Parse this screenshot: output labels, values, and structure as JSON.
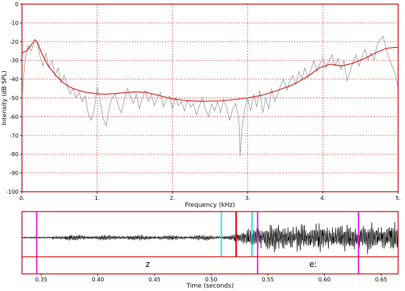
{
  "chart_data": [
    {
      "type": "line",
      "xlabel": "Frequency (kHz)",
      "ylabel": "Intensity (dB SPL)",
      "xlim": [
        0,
        5
      ],
      "ylim": [
        -100,
        0
      ],
      "x_ticks": [
        0,
        1,
        2,
        3,
        4,
        5
      ],
      "x_tick_labels": [
        "0.",
        "1.",
        "2.",
        "3.",
        "4.",
        "5."
      ],
      "y_ticks": [
        0,
        -10,
        -20,
        -30,
        -40,
        -50,
        -60,
        -70,
        -80,
        -90,
        -100
      ],
      "y_tick_labels": [
        "0",
        "-10",
        "-20",
        "-30",
        "-40",
        "-50",
        "-60",
        "-70",
        "-80",
        "-90",
        "-100"
      ],
      "grid": true,
      "grid_color": "#e05050",
      "frame_color": "#cc0000",
      "series": [
        {
          "color": "#999999",
          "points": [
            [
              0,
              -49
            ],
            [
              0.04,
              -30
            ],
            [
              0.08,
              -22
            ],
            [
              0.12,
              -25
            ],
            [
              0.16,
              -21
            ],
            [
              0.2,
              -20
            ],
            [
              0.24,
              -28
            ],
            [
              0.28,
              -33
            ],
            [
              0.32,
              -26
            ],
            [
              0.36,
              -34
            ],
            [
              0.4,
              -30
            ],
            [
              0.44,
              -38
            ],
            [
              0.48,
              -34
            ],
            [
              0.52,
              -42
            ],
            [
              0.56,
              -38
            ],
            [
              0.6,
              -43
            ],
            [
              0.64,
              -48
            ],
            [
              0.68,
              -45
            ],
            [
              0.72,
              -50
            ],
            [
              0.76,
              -47
            ],
            [
              0.8,
              -52
            ],
            [
              0.84,
              -49
            ],
            [
              0.88,
              -58
            ],
            [
              0.92,
              -62
            ],
            [
              0.96,
              -56
            ],
            [
              1.0,
              -44
            ],
            [
              1.04,
              -52
            ],
            [
              1.08,
              -61
            ],
            [
              1.12,
              -65
            ],
            [
              1.16,
              -55
            ],
            [
              1.2,
              -50
            ],
            [
              1.24,
              -48
            ],
            [
              1.28,
              -54
            ],
            [
              1.32,
              -58
            ],
            [
              1.36,
              -51
            ],
            [
              1.4,
              -45
            ],
            [
              1.44,
              -49
            ],
            [
              1.48,
              -53
            ],
            [
              1.52,
              -48
            ],
            [
              1.56,
              -56
            ],
            [
              1.6,
              -50
            ],
            [
              1.64,
              -46
            ],
            [
              1.68,
              -52
            ],
            [
              1.72,
              -48
            ],
            [
              1.76,
              -54
            ],
            [
              1.8,
              -50
            ],
            [
              1.84,
              -47
            ],
            [
              1.88,
              -55
            ],
            [
              1.92,
              -51
            ],
            [
              1.96,
              -49
            ],
            [
              2.0,
              -56
            ],
            [
              2.04,
              -50
            ],
            [
              2.08,
              -54
            ],
            [
              2.12,
              -52
            ],
            [
              2.16,
              -57
            ],
            [
              2.2,
              -51
            ],
            [
              2.24,
              -55
            ],
            [
              2.28,
              -53
            ],
            [
              2.32,
              -59
            ],
            [
              2.36,
              -54
            ],
            [
              2.4,
              -50
            ],
            [
              2.44,
              -56
            ],
            [
              2.48,
              -60
            ],
            [
              2.52,
              -53
            ],
            [
              2.56,
              -57
            ],
            [
              2.6,
              -52
            ],
            [
              2.64,
              -58
            ],
            [
              2.68,
              -51
            ],
            [
              2.72,
              -55
            ],
            [
              2.76,
              -62
            ],
            [
              2.8,
              -56
            ],
            [
              2.84,
              -53
            ],
            [
              2.88,
              -60
            ],
            [
              2.9,
              -81
            ],
            [
              2.92,
              -68
            ],
            [
              2.96,
              -56
            ],
            [
              3.0,
              -50
            ],
            [
              3.04,
              -57
            ],
            [
              3.08,
              -48
            ],
            [
              3.12,
              -55
            ],
            [
              3.16,
              -46
            ],
            [
              3.2,
              -58
            ],
            [
              3.24,
              -50
            ],
            [
              3.28,
              -56
            ],
            [
              3.32,
              -45
            ],
            [
              3.36,
              -52
            ],
            [
              3.4,
              -48
            ],
            [
              3.44,
              -43
            ],
            [
              3.48,
              -40
            ],
            [
              3.52,
              -46
            ],
            [
              3.56,
              -41
            ],
            [
              3.6,
              -38
            ],
            [
              3.64,
              -43
            ],
            [
              3.68,
              -36
            ],
            [
              3.72,
              -40
            ],
            [
              3.76,
              -34
            ],
            [
              3.8,
              -39
            ],
            [
              3.84,
              -35
            ],
            [
              3.88,
              -30
            ],
            [
              3.92,
              -36
            ],
            [
              3.96,
              -32
            ],
            [
              4.0,
              -29
            ],
            [
              4.04,
              -34
            ],
            [
              4.08,
              -30
            ],
            [
              4.12,
              -27
            ],
            [
              4.16,
              -33
            ],
            [
              4.2,
              -29
            ],
            [
              4.24,
              -35
            ],
            [
              4.28,
              -30
            ],
            [
              4.32,
              -41
            ],
            [
              4.36,
              -36
            ],
            [
              4.4,
              -31
            ],
            [
              4.44,
              -27
            ],
            [
              4.48,
              -33
            ],
            [
              4.52,
              -28
            ],
            [
              4.56,
              -24
            ],
            [
              4.6,
              -30
            ],
            [
              4.64,
              -26
            ],
            [
              4.68,
              -30
            ],
            [
              4.72,
              -22
            ],
            [
              4.76,
              -19
            ],
            [
              4.8,
              -17
            ],
            [
              4.84,
              -24
            ],
            [
              4.88,
              -29
            ],
            [
              4.92,
              -33
            ],
            [
              4.96,
              -37
            ],
            [
              5.0,
              -45
            ]
          ]
        },
        {
          "color": "#cc0000",
          "points": [
            [
              0,
              -26
            ],
            [
              0.06,
              -25
            ],
            [
              0.12,
              -22
            ],
            [
              0.17,
              -19
            ],
            [
              0.2,
              -20
            ],
            [
              0.26,
              -26
            ],
            [
              0.35,
              -33
            ],
            [
              0.45,
              -38
            ],
            [
              0.55,
              -42
            ],
            [
              0.65,
              -44.5
            ],
            [
              0.75,
              -46
            ],
            [
              0.85,
              -47
            ],
            [
              1.0,
              -47.8
            ],
            [
              1.1,
              -48
            ],
            [
              1.2,
              -47.8
            ],
            [
              1.35,
              -47.3
            ],
            [
              1.5,
              -46.8
            ],
            [
              1.65,
              -47
            ],
            [
              1.8,
              -48.5
            ],
            [
              2.0,
              -50.5
            ],
            [
              2.2,
              -51.5
            ],
            [
              2.4,
              -51.8
            ],
            [
              2.6,
              -51.6
            ],
            [
              2.8,
              -51
            ],
            [
              3.0,
              -50
            ],
            [
              3.2,
              -48.5
            ],
            [
              3.4,
              -46
            ],
            [
              3.6,
              -43
            ],
            [
              3.8,
              -38.5
            ],
            [
              3.95,
              -34
            ],
            [
              4.1,
              -32
            ],
            [
              4.25,
              -33
            ],
            [
              4.4,
              -31.5
            ],
            [
              4.55,
              -29
            ],
            [
              4.7,
              -26
            ],
            [
              4.85,
              -23.5
            ],
            [
              5.0,
              -23
            ]
          ]
        }
      ]
    },
    {
      "type": "line",
      "xlabel": "Time (seconds)",
      "xlim": [
        0.333,
        0.665
      ],
      "x_ticks": [
        0.35,
        0.4,
        0.45,
        0.5,
        0.55,
        0.6,
        0.65
      ],
      "x_tick_labels": [
        "0.35",
        "0.40",
        "0.45",
        "0.50",
        "0.55",
        "0.60",
        "0.65"
      ],
      "waveform_color": "#000000",
      "markers": [
        {
          "time": 0.346,
          "color": "#ee00ee"
        },
        {
          "time": 0.509,
          "color": "#00e5e5"
        },
        {
          "time": 0.522,
          "color": "#dd0000"
        },
        {
          "time": 0.536,
          "color": "#00e5e5"
        },
        {
          "time": 0.541,
          "color": "#ee00ee"
        },
        {
          "time": 0.63,
          "color": "#ee00ee"
        }
      ],
      "segments": [
        {
          "label": "z",
          "label_time": 0.444
        },
        {
          "label": "eː",
          "label_time": 0.59
        }
      ]
    }
  ]
}
